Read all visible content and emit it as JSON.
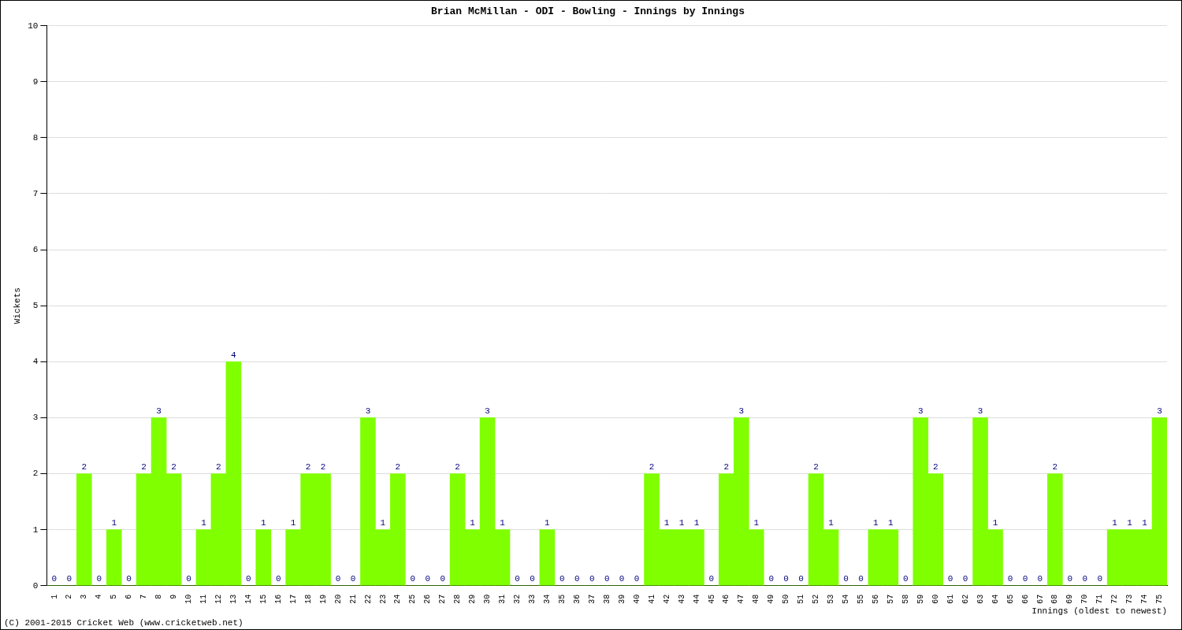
{
  "chart_data": {
    "type": "bar",
    "title": "Brian McMillan - ODI - Bowling - Innings by Innings",
    "x_label": "Innings (oldest to newest)",
    "y_label": "Wickets",
    "footer": "(C) 2001-2015 Cricket Web (www.cricketweb.net)",
    "categories": [
      "1",
      "2",
      "3",
      "4",
      "5",
      "6",
      "7",
      "8",
      "9",
      "10",
      "11",
      "12",
      "13",
      "14",
      "15",
      "16",
      "17",
      "18",
      "19",
      "20",
      "21",
      "22",
      "23",
      "24",
      "25",
      "26",
      "27",
      "28",
      "29",
      "30",
      "31",
      "32",
      "33",
      "34",
      "35",
      "36",
      "37",
      "38",
      "39",
      "40",
      "41",
      "42",
      "43",
      "44",
      "45",
      "46",
      "47",
      "48",
      "49",
      "50",
      "51",
      "52",
      "53",
      "54",
      "55",
      "56",
      "57",
      "58",
      "59",
      "60",
      "61",
      "62",
      "63",
      "64",
      "65",
      "66",
      "67",
      "68",
      "69",
      "70",
      "71",
      "72",
      "73",
      "74",
      "75"
    ],
    "values": [
      0,
      0,
      2,
      0,
      1,
      0,
      2,
      3,
      2,
      0,
      1,
      2,
      4,
      0,
      1,
      0,
      1,
      2,
      2,
      0,
      0,
      3,
      1,
      2,
      0,
      0,
      0,
      2,
      1,
      3,
      1,
      0,
      0,
      1,
      0,
      0,
      0,
      0,
      0,
      0,
      2,
      1,
      1,
      1,
      0,
      2,
      3,
      1,
      0,
      0,
      0,
      2,
      1,
      0,
      0,
      1,
      1,
      0,
      3,
      2,
      0,
      0,
      3,
      1,
      0,
      0,
      0,
      2,
      0,
      0,
      0,
      1,
      1,
      1,
      3
    ],
    "color": "#80ff00",
    "ylim": [
      0,
      10
    ],
    "yticks": [
      0,
      1,
      2,
      3,
      4,
      5,
      6,
      7,
      8,
      9,
      10
    ],
    "grid": true,
    "data_labels": true
  }
}
